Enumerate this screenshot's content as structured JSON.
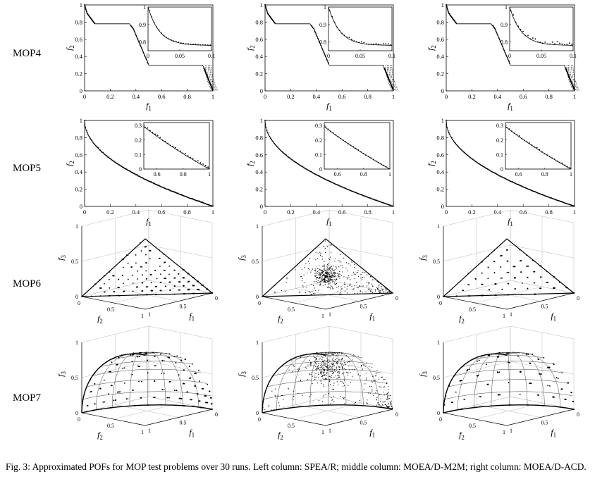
{
  "row_labels": [
    "MOP4",
    "MOP5",
    "MOP6",
    "MOP7"
  ],
  "caption": "Fig. 3: Approximated POFs for MOP test problems over 30 runs. Left column: SPEA/R; middle column: MOEA/D-M2M; right column: MOEA/D-ACD.",
  "axis_text": {
    "f1": "f",
    "f2": "f",
    "f3": "f",
    "sub1": "1",
    "sub2": "2",
    "sub3": "3"
  },
  "chart_data": [
    {
      "problem": "MOP4",
      "type": "scatter",
      "dimensions": 2,
      "xlim": [
        0,
        1
      ],
      "ylim": [
        0,
        1
      ],
      "xticks": [
        "0",
        "0.2",
        "0.4",
        "0.6",
        "0.8",
        "1"
      ],
      "yticks": [
        "0",
        "0.2",
        "0.4",
        "0.6",
        "0.8",
        "1"
      ],
      "inset": {
        "xlim": [
          0,
          0.1
        ],
        "ylim": [
          0.75,
          1
        ],
        "xticks": [
          "0",
          "0.05",
          "0.1"
        ],
        "yticks": [
          "0.8",
          "0.9",
          "1"
        ]
      },
      "reference_front": [
        [
          0,
          1
        ],
        [
          0.02,
          0.9
        ],
        [
          0.06,
          0.8
        ],
        [
          0.08,
          0.78
        ],
        [
          0.35,
          0.78
        ],
        [
          0.38,
          0.72
        ],
        [
          0.45,
          0.4
        ],
        [
          0.5,
          0.3
        ],
        [
          0.92,
          0.28
        ],
        [
          0.95,
          0.2
        ],
        [
          1,
          0
        ]
      ],
      "columns": [
        "SPEA/R",
        "MOEA/D-M2M",
        "MOEA/D-ACD"
      ]
    },
    {
      "problem": "MOP5",
      "type": "scatter",
      "dimensions": 2,
      "xlim": [
        0,
        1
      ],
      "ylim": [
        0,
        1
      ],
      "xticks": [
        "0",
        "0.2",
        "0.4",
        "0.6",
        "0.8",
        "1"
      ],
      "yticks": [
        "0",
        "0.2",
        "0.4",
        "0.6",
        "0.8",
        "1"
      ],
      "inset": {
        "xlim": [
          0.5,
          1
        ],
        "ylim": [
          0,
          0.32
        ],
        "xticks": [
          "0.6",
          "0.8",
          "1"
        ],
        "yticks": [
          "0",
          "0.1",
          "0.2",
          "0.3"
        ]
      },
      "reference_front": "f2 = 1 - sqrt(f1)",
      "columns": [
        "SPEA/R",
        "MOEA/D-M2M",
        "MOEA/D-ACD"
      ]
    },
    {
      "problem": "MOP6",
      "type": "scatter",
      "dimensions": 3,
      "f3_ticks": [
        "0",
        "0.5",
        "1"
      ],
      "f2_ticks": [
        "0",
        "0.5",
        "1"
      ],
      "f1_ticks": [
        "0",
        "0.5",
        "1"
      ],
      "reference_front": "f1 + f2 + f3 = 1",
      "columns": [
        "SPEA/R",
        "MOEA/D-M2M",
        "MOEA/D-ACD"
      ]
    },
    {
      "problem": "MOP7",
      "type": "scatter",
      "dimensions": 3,
      "f3_ticks": [
        "0",
        "0.5",
        "1"
      ],
      "f2_ticks": [
        "0",
        "0.5",
        "1"
      ],
      "f1_ticks": [
        "0",
        "0.5",
        "1"
      ],
      "reference_front": "f1^2 + f2^2 + f3^2 = 1",
      "columns": [
        "SPEA/R",
        "MOEA/D-M2M",
        "MOEA/D-ACD"
      ]
    }
  ]
}
